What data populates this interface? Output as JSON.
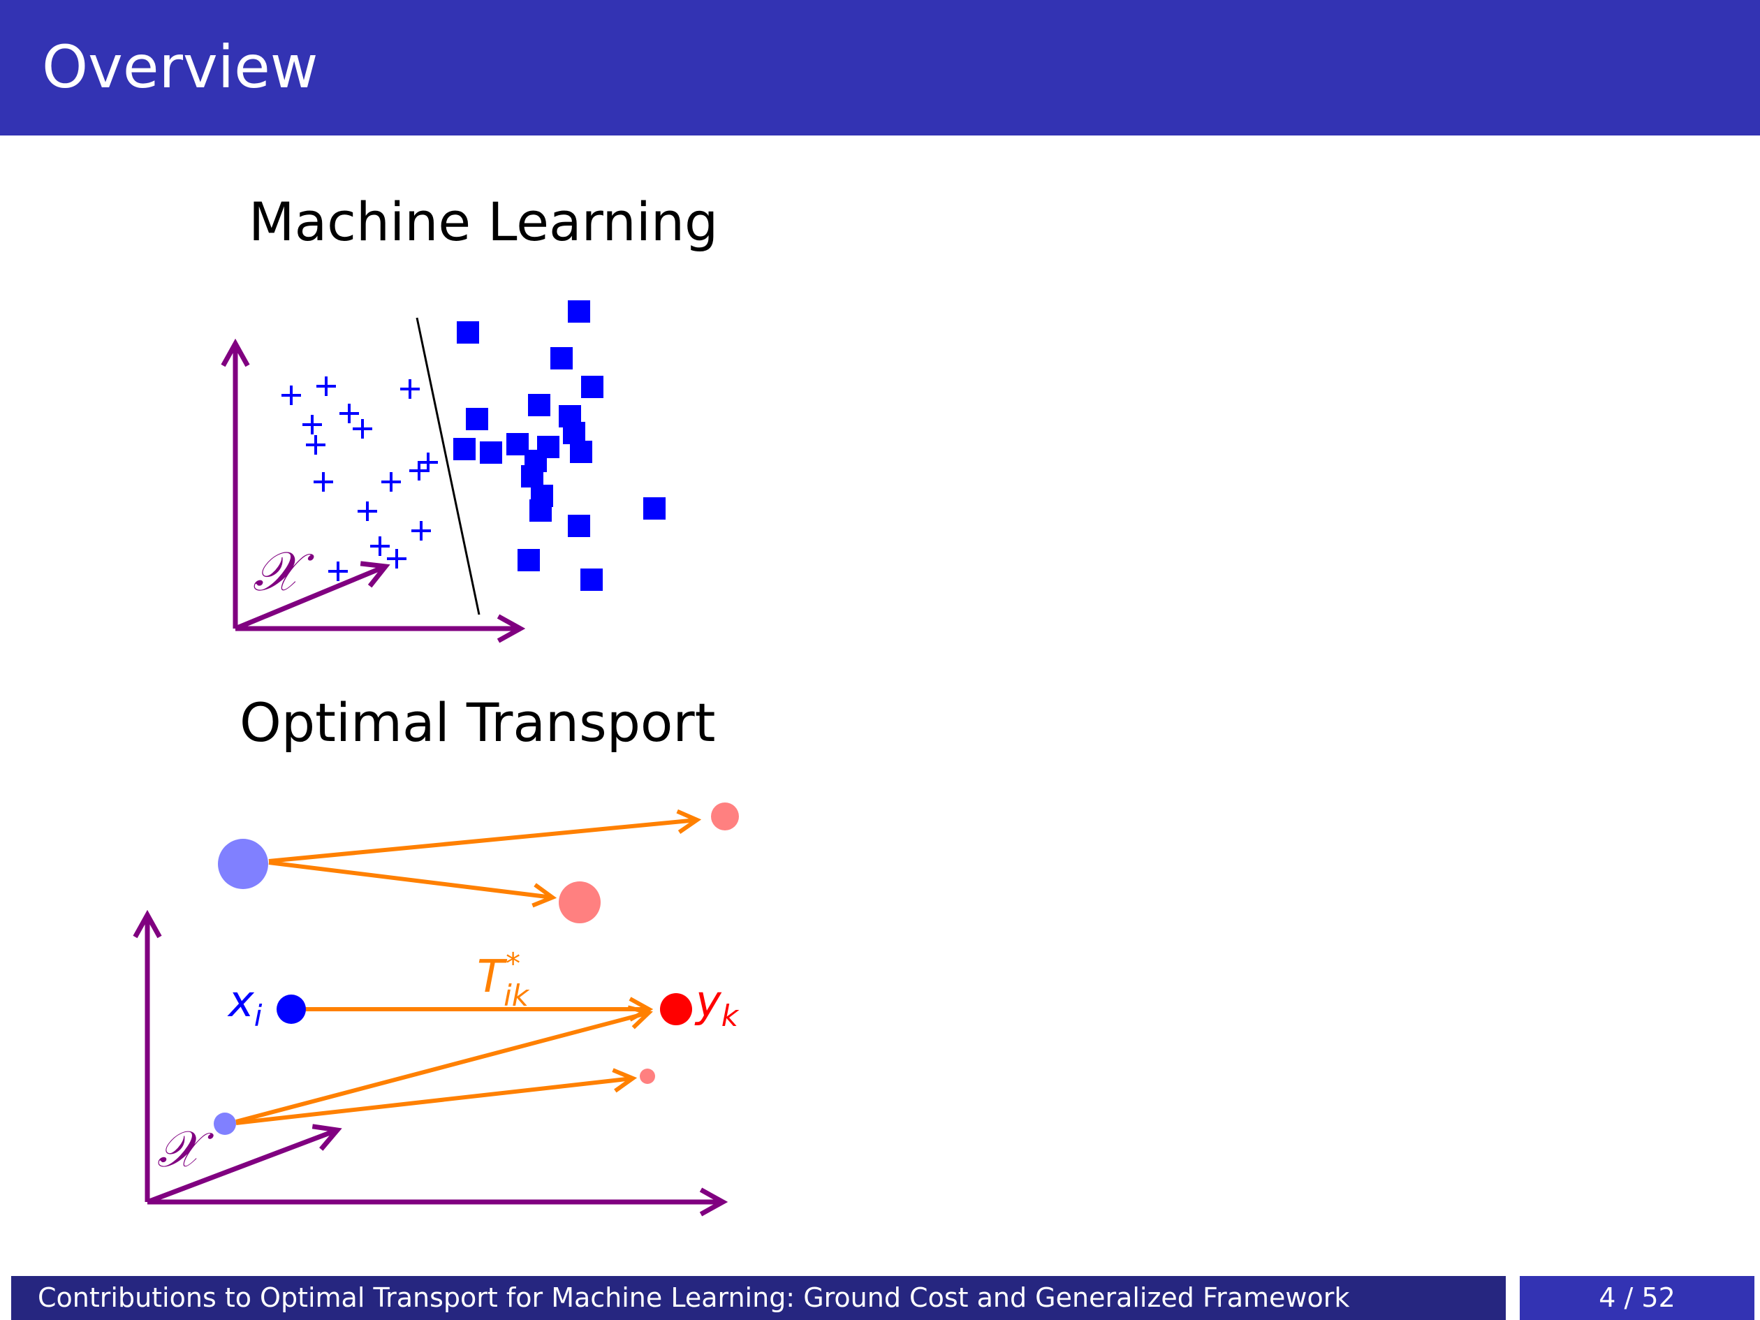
{
  "header": {
    "title": "Overview"
  },
  "sections": {
    "ml_title": "Machine Learning",
    "ot_title": "Optimal Transport"
  },
  "figure_labels": {
    "space_symbol_ml": "𝒳",
    "space_symbol_ot": "𝒳",
    "source_label_base": "x",
    "source_label_sub": "i",
    "target_label_base": "y",
    "target_label_sub": "k",
    "transport_label_base": "T",
    "transport_label_sup": "*",
    "transport_label_sub": "ik"
  },
  "colors": {
    "header": "#3333b3",
    "footer_dark": "#262680",
    "axis": "#800080",
    "points": "#0000ff",
    "source_light": "#8080ff",
    "target": "#ff0000",
    "target_light": "#ff8080",
    "transport": "#ff8000"
  },
  "footer": {
    "title": "Contributions to Optimal Transport for Machine Learning: Ground Cost and Generalized Framework",
    "page": "4 / 52"
  }
}
